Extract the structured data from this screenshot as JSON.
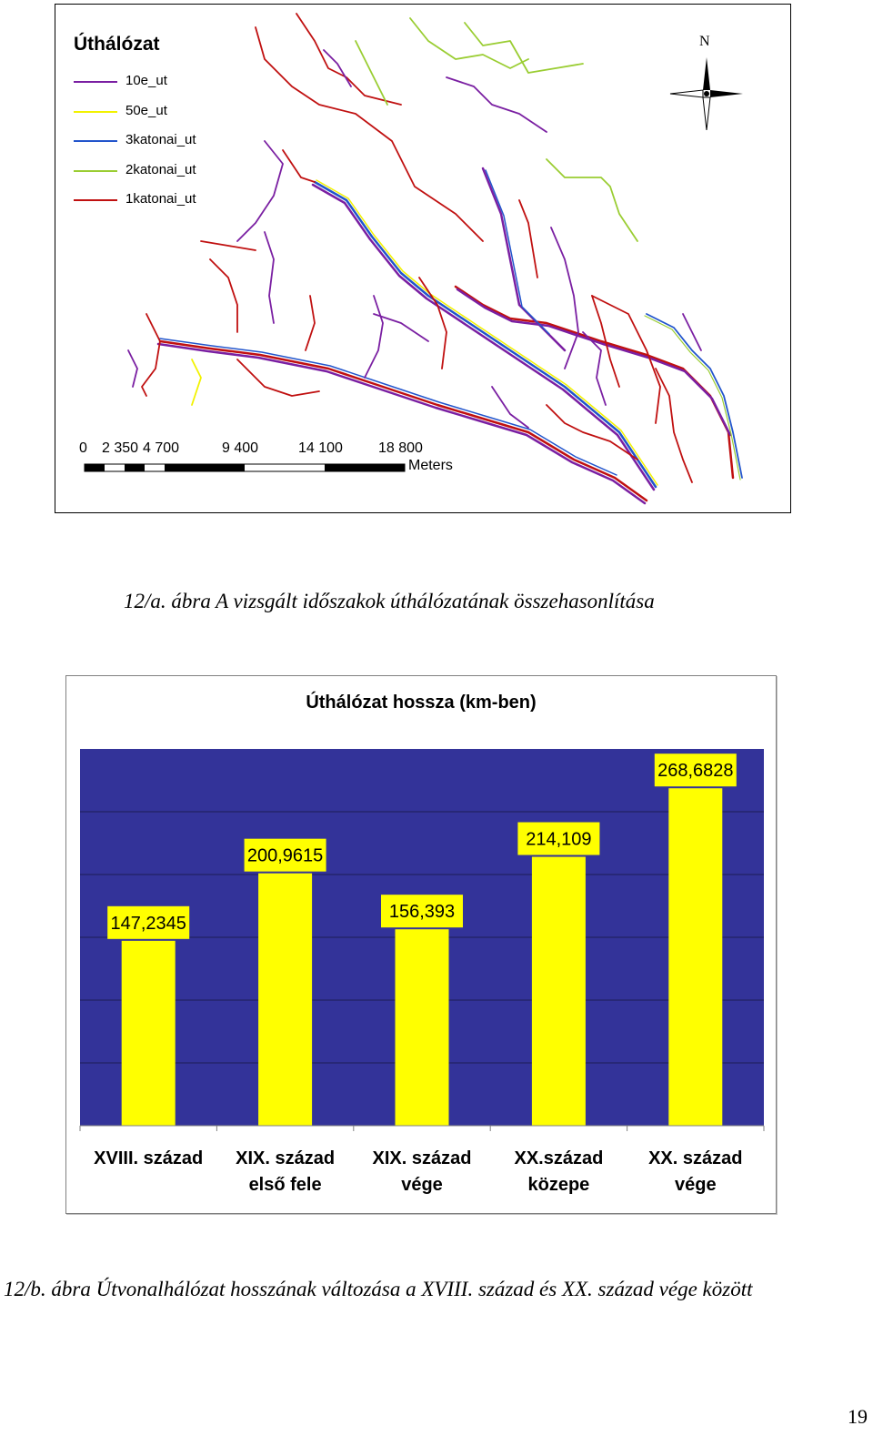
{
  "map": {
    "title": "Úthálózat",
    "legend": [
      {
        "label": "10e_ut",
        "color": "#7a1fa2"
      },
      {
        "label": "50e_ut",
        "color": "#f2f200"
      },
      {
        "label": "3katonai_ut",
        "color": "#2255cc"
      },
      {
        "label": "2katonai_ut",
        "color": "#9acd32"
      },
      {
        "label": "1katonai_ut",
        "color": "#c01010"
      }
    ],
    "north_label": "N",
    "scale_ticks": [
      "0",
      "2 350",
      "4 700",
      "9 400",
      "14 100",
      "18 800"
    ],
    "scale_units": "Meters"
  },
  "caption_a": "12/a. ábra A vizsgált időszakok úthálózatának összehasonlítása",
  "chart_data": {
    "type": "bar",
    "title": "Úthálózat hossza (km-ben)",
    "categories": [
      [
        "XVIII. század"
      ],
      [
        "XIX. század",
        "első fele"
      ],
      [
        "XIX. század",
        "vége"
      ],
      [
        "XX.század",
        "közepe"
      ],
      [
        "XX. század",
        "vége"
      ]
    ],
    "values": [
      147.2345,
      200.9615,
      156.393,
      214.109,
      268.6828
    ],
    "value_labels": [
      "147,2345",
      "200,9615",
      "156,393",
      "214,109",
      "268,6828"
    ],
    "ylim": [
      0,
      300
    ],
    "gridlines": [
      50,
      100,
      150,
      200,
      250
    ],
    "plot_background": "#333399",
    "bar_color": "#ffff00",
    "grid_color": "#1d1d55"
  },
  "caption_b": "12/b. ábra Útvonalhálózat hosszának változása a XVIII. század és XX. század vége között",
  "page_number": "19"
}
